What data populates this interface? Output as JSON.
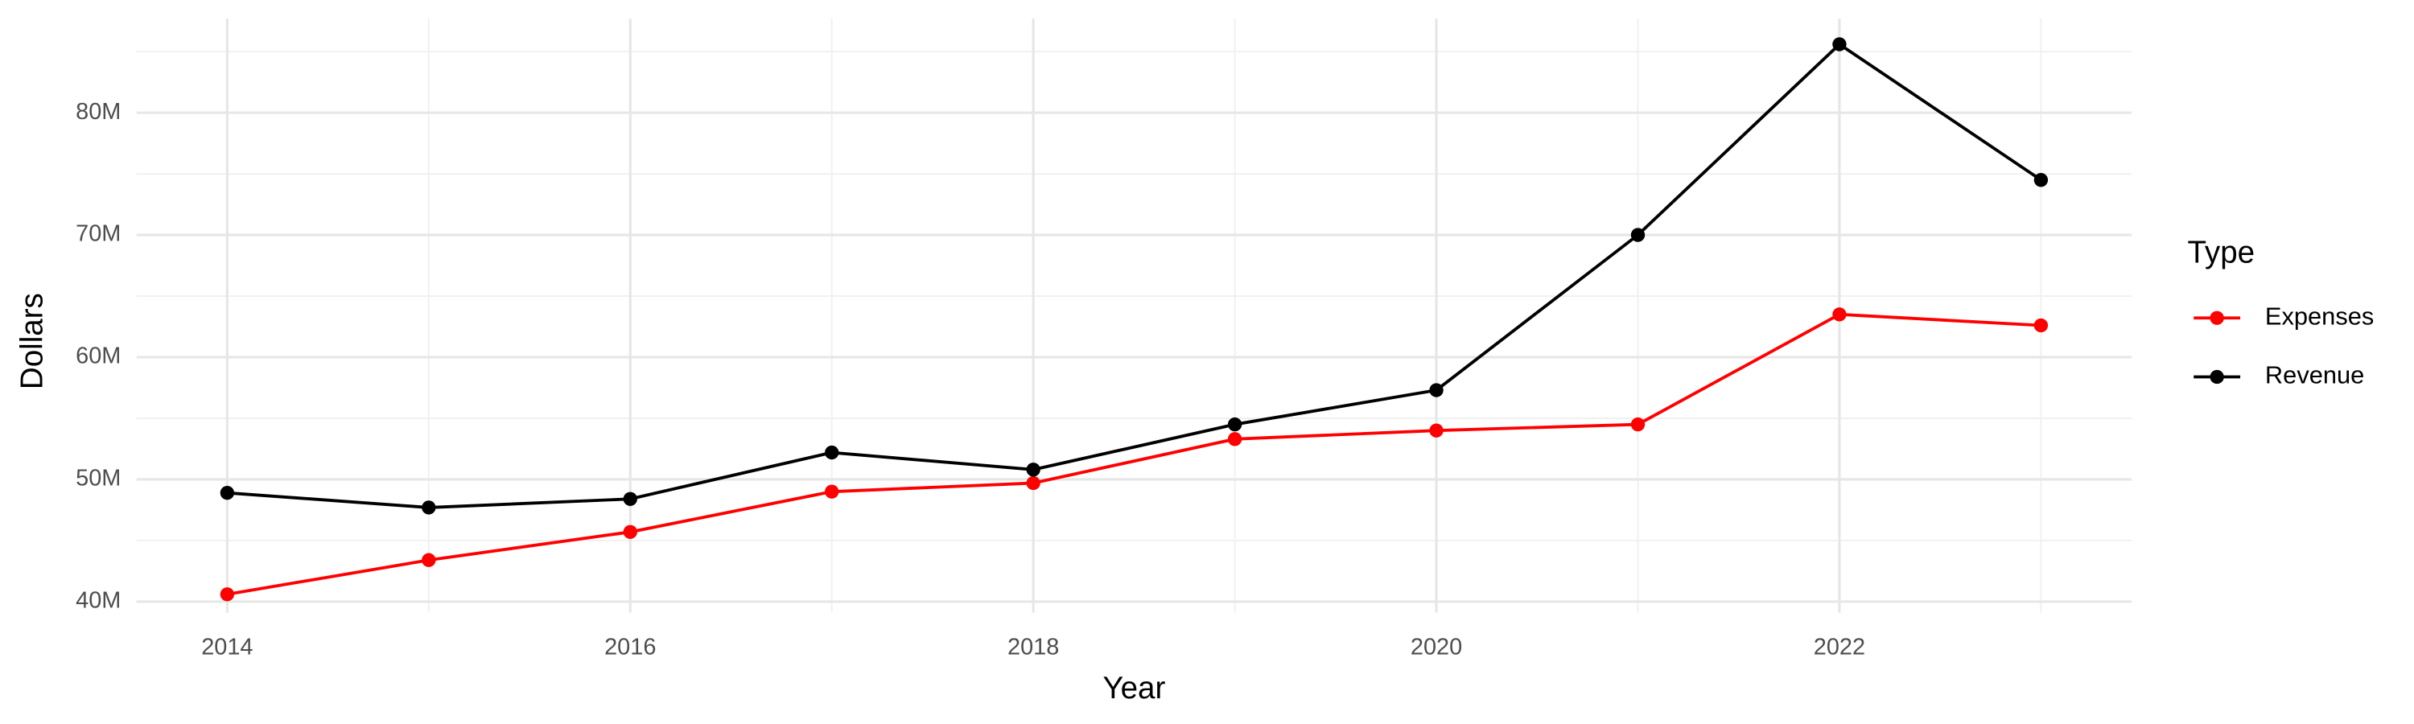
{
  "chart_data": {
    "type": "line",
    "x_label": "Year",
    "y_label": "Dollars",
    "x": [
      2014,
      2015,
      2016,
      2017,
      2018,
      2019,
      2020,
      2021,
      2022,
      2023
    ],
    "series": [
      {
        "name": "Expenses",
        "color": "#ff0000",
        "values": [
          40600000,
          43400000,
          45700000,
          49000000,
          49700000,
          53300000,
          54000000,
          54500000,
          63500000,
          62600000
        ]
      },
      {
        "name": "Revenue",
        "color": "#000000",
        "values": [
          48900000,
          47700000,
          48400000,
          52200000,
          50800000,
          54500000,
          57300000,
          70000000,
          85600000,
          74500000
        ]
      }
    ],
    "xlim": [
      2013.55,
      2023.45
    ],
    "xticks": [
      2014,
      2016,
      2018,
      2020,
      2022
    ],
    "x_minor_grid": [
      2015,
      2017,
      2019,
      2021,
      2023
    ],
    "ylim": [
      39100000,
      87700000
    ],
    "yticks": [
      {
        "value": 40000000,
        "label": "40M"
      },
      {
        "value": 50000000,
        "label": "50M"
      },
      {
        "value": 60000000,
        "label": "60M"
      },
      {
        "value": 70000000,
        "label": "70M"
      },
      {
        "value": 80000000,
        "label": "80M"
      }
    ],
    "y_minor_grid": [
      45000000,
      55000000,
      65000000,
      75000000,
      85000000
    ],
    "grid": true,
    "legend_title": "Type",
    "legend_position": "right"
  }
}
